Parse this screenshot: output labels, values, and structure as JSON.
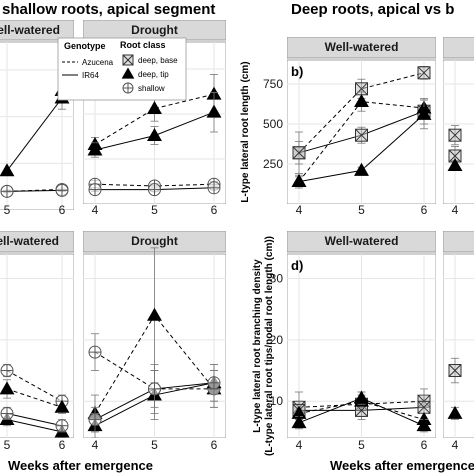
{
  "titles": {
    "left": "shallow roots, apical segment",
    "right": "Deep roots, apical vs b"
  },
  "x_axis_title": "Weeks after emergence",
  "legend": {
    "genotype_title": "Genotype",
    "genotypes": [
      "Azucena",
      "IR64"
    ],
    "rootclass_title": "Root class",
    "rootclasses": [
      "deep, base",
      "deep, tip",
      "shallow"
    ]
  },
  "colors": {
    "strip_bg": "#d9d9d9",
    "panel_bg": "#ffffff",
    "grid": "#e6e6e6",
    "ink": "#000000",
    "tip_fill": "#000000",
    "base_fill": "#bfbfbf"
  },
  "chart_data": [
    {
      "id": "top-left-a",
      "type": "line",
      "strip": "Well-watered",
      "x": [
        5,
        6
      ],
      "series": [
        {
          "genotype": "Azucena",
          "root_class": "deep, tip",
          "y": [
            null,
            640
          ],
          "err": [
            null,
            35
          ]
        },
        {
          "genotype": "IR64",
          "root_class": "deep, tip",
          "y": [
            210,
            600
          ],
          "err": [
            null,
            60
          ]
        },
        {
          "genotype": "Azucena",
          "root_class": "shallow",
          "y": [
            100,
            110
          ],
          "err": [
            8,
            8
          ]
        },
        {
          "genotype": "IR64",
          "root_class": "shallow",
          "y": [
            100,
            105
          ],
          "err": [
            6,
            6
          ]
        }
      ]
    },
    {
      "id": "top-left-b",
      "type": "line",
      "strip": "Drought",
      "x": [
        4,
        5,
        6
      ],
      "series": [
        {
          "genotype": "Azucena",
          "root_class": "deep, tip",
          "y": [
            330,
            530,
            610
          ],
          "err": [
            40,
            70,
            110
          ]
        },
        {
          "genotype": "IR64",
          "root_class": "deep, tip",
          "y": [
            300,
            380,
            510
          ],
          "err": [
            40,
            50,
            110
          ]
        },
        {
          "genotype": "Azucena",
          "root_class": "shallow",
          "y": [
            110,
            100,
            110
          ],
          "err": [
            20,
            15,
            15
          ]
        },
        {
          "genotype": "IR64",
          "root_class": "shallow",
          "y": [
            80,
            80,
            90
          ],
          "err": [
            10,
            10,
            10
          ]
        }
      ]
    },
    {
      "id": "top-right-b",
      "type": "line",
      "letter": "b)",
      "strip": "Well-watered",
      "x": [
        4,
        5,
        6
      ],
      "ylabel": "L-type lateral root length (cm)",
      "yticks": [
        250,
        500,
        750
      ],
      "ylim": [
        0,
        900
      ],
      "series": [
        {
          "genotype": "Azucena",
          "root_class": "deep, base",
          "y": [
            320,
            720,
            820
          ],
          "err": [
            130,
            60,
            40
          ]
        },
        {
          "genotype": "IR64",
          "root_class": "deep, base",
          "y": [
            320,
            430,
            580
          ],
          "err": [
            70,
            50,
            80
          ]
        },
        {
          "genotype": "Azucena",
          "root_class": "deep, tip",
          "y": [
            140,
            640,
            600
          ],
          "err": [
            40,
            60,
            50
          ]
        },
        {
          "genotype": "IR64",
          "root_class": "deep, tip",
          "y": [
            140,
            210,
            560
          ],
          "err": [
            30,
            20,
            90
          ]
        }
      ]
    },
    {
      "id": "top-right-c",
      "type": "line",
      "strip": "",
      "x": [
        4
      ],
      "series": [
        {
          "genotype": "Azucena",
          "root_class": "deep, base",
          "y": [
            430
          ],
          "err": [
            60
          ]
        },
        {
          "genotype": "IR64",
          "root_class": "deep, base",
          "y": [
            300
          ],
          "err": [
            60
          ]
        },
        {
          "genotype": "IR64",
          "root_class": "deep, tip",
          "y": [
            240
          ],
          "err": [
            30
          ]
        }
      ]
    },
    {
      "id": "bottom-left-a",
      "type": "line",
      "strip": "well-watered",
      "x": [
        5,
        6
      ],
      "series": [
        {
          "genotype": "Azucena",
          "root_class": "shallow",
          "y": [
            15,
            10
          ],
          "err": [
            1,
            1
          ]
        },
        {
          "genotype": "Azucena",
          "root_class": "deep, tip",
          "y": [
            12,
            9
          ],
          "err": [
            1.5,
            1
          ]
        },
        {
          "genotype": "IR64",
          "root_class": "deep, tip",
          "y": [
            7,
            5
          ],
          "err": [
            1,
            1
          ]
        },
        {
          "genotype": "IR64",
          "root_class": "shallow",
          "y": [
            8,
            6
          ],
          "err": [
            1,
            1
          ]
        }
      ]
    },
    {
      "id": "bottom-left-b",
      "type": "line",
      "strip": "Drought",
      "x": [
        4,
        5,
        6
      ],
      "series": [
        {
          "genotype": "Azucena",
          "root_class": "deep, tip",
          "y": [
            8,
            24,
            12
          ],
          "err": [
            3,
            11,
            3
          ]
        },
        {
          "genotype": "Azucena",
          "root_class": "shallow",
          "y": [
            18,
            12,
            12
          ],
          "err": [
            3,
            4,
            3
          ]
        },
        {
          "genotype": "IR64",
          "root_class": "deep, tip",
          "y": [
            6,
            11,
            13
          ],
          "err": [
            2,
            4,
            3
          ]
        },
        {
          "genotype": "IR64",
          "root_class": "shallow",
          "y": [
            7,
            12,
            13
          ],
          "err": [
            2,
            3,
            3
          ]
        }
      ]
    },
    {
      "id": "bottom-right-d",
      "type": "line",
      "letter": "d)",
      "strip": "Well-watered",
      "x": [
        4,
        5,
        6
      ],
      "ylabel": "L-type lateral root branching density",
      "ylabel2": "(L-type lateral root tips/nodal root length (cm))",
      "yticks": [
        10,
        20,
        30
      ],
      "ylim": [
        4,
        34
      ],
      "series": [
        {
          "genotype": "Azucena",
          "root_class": "deep, base",
          "y": [
            9,
            9.5,
            10
          ],
          "err": [
            2.5,
            2,
            2
          ]
        },
        {
          "genotype": "IR64",
          "root_class": "deep, base",
          "y": [
            8.5,
            8.5,
            9
          ],
          "err": [
            1.5,
            1.5,
            2
          ]
        },
        {
          "genotype": "Azucena",
          "root_class": "deep, tip",
          "y": [
            8,
            10,
            7
          ],
          "err": [
            1,
            1,
            1
          ]
        },
        {
          "genotype": "IR64",
          "root_class": "deep, tip",
          "y": [
            6.5,
            10.5,
            6
          ],
          "err": [
            1,
            1,
            1
          ]
        }
      ]
    },
    {
      "id": "bottom-right-e",
      "type": "line",
      "strip": "",
      "x": [
        4
      ],
      "series": [
        {
          "genotype": "Azucena",
          "root_class": "deep, base",
          "y": [
            15
          ],
          "err": [
            2
          ]
        },
        {
          "genotype": "IR64",
          "root_class": "deep, tip",
          "y": [
            8
          ],
          "err": [
            1
          ]
        }
      ]
    }
  ]
}
